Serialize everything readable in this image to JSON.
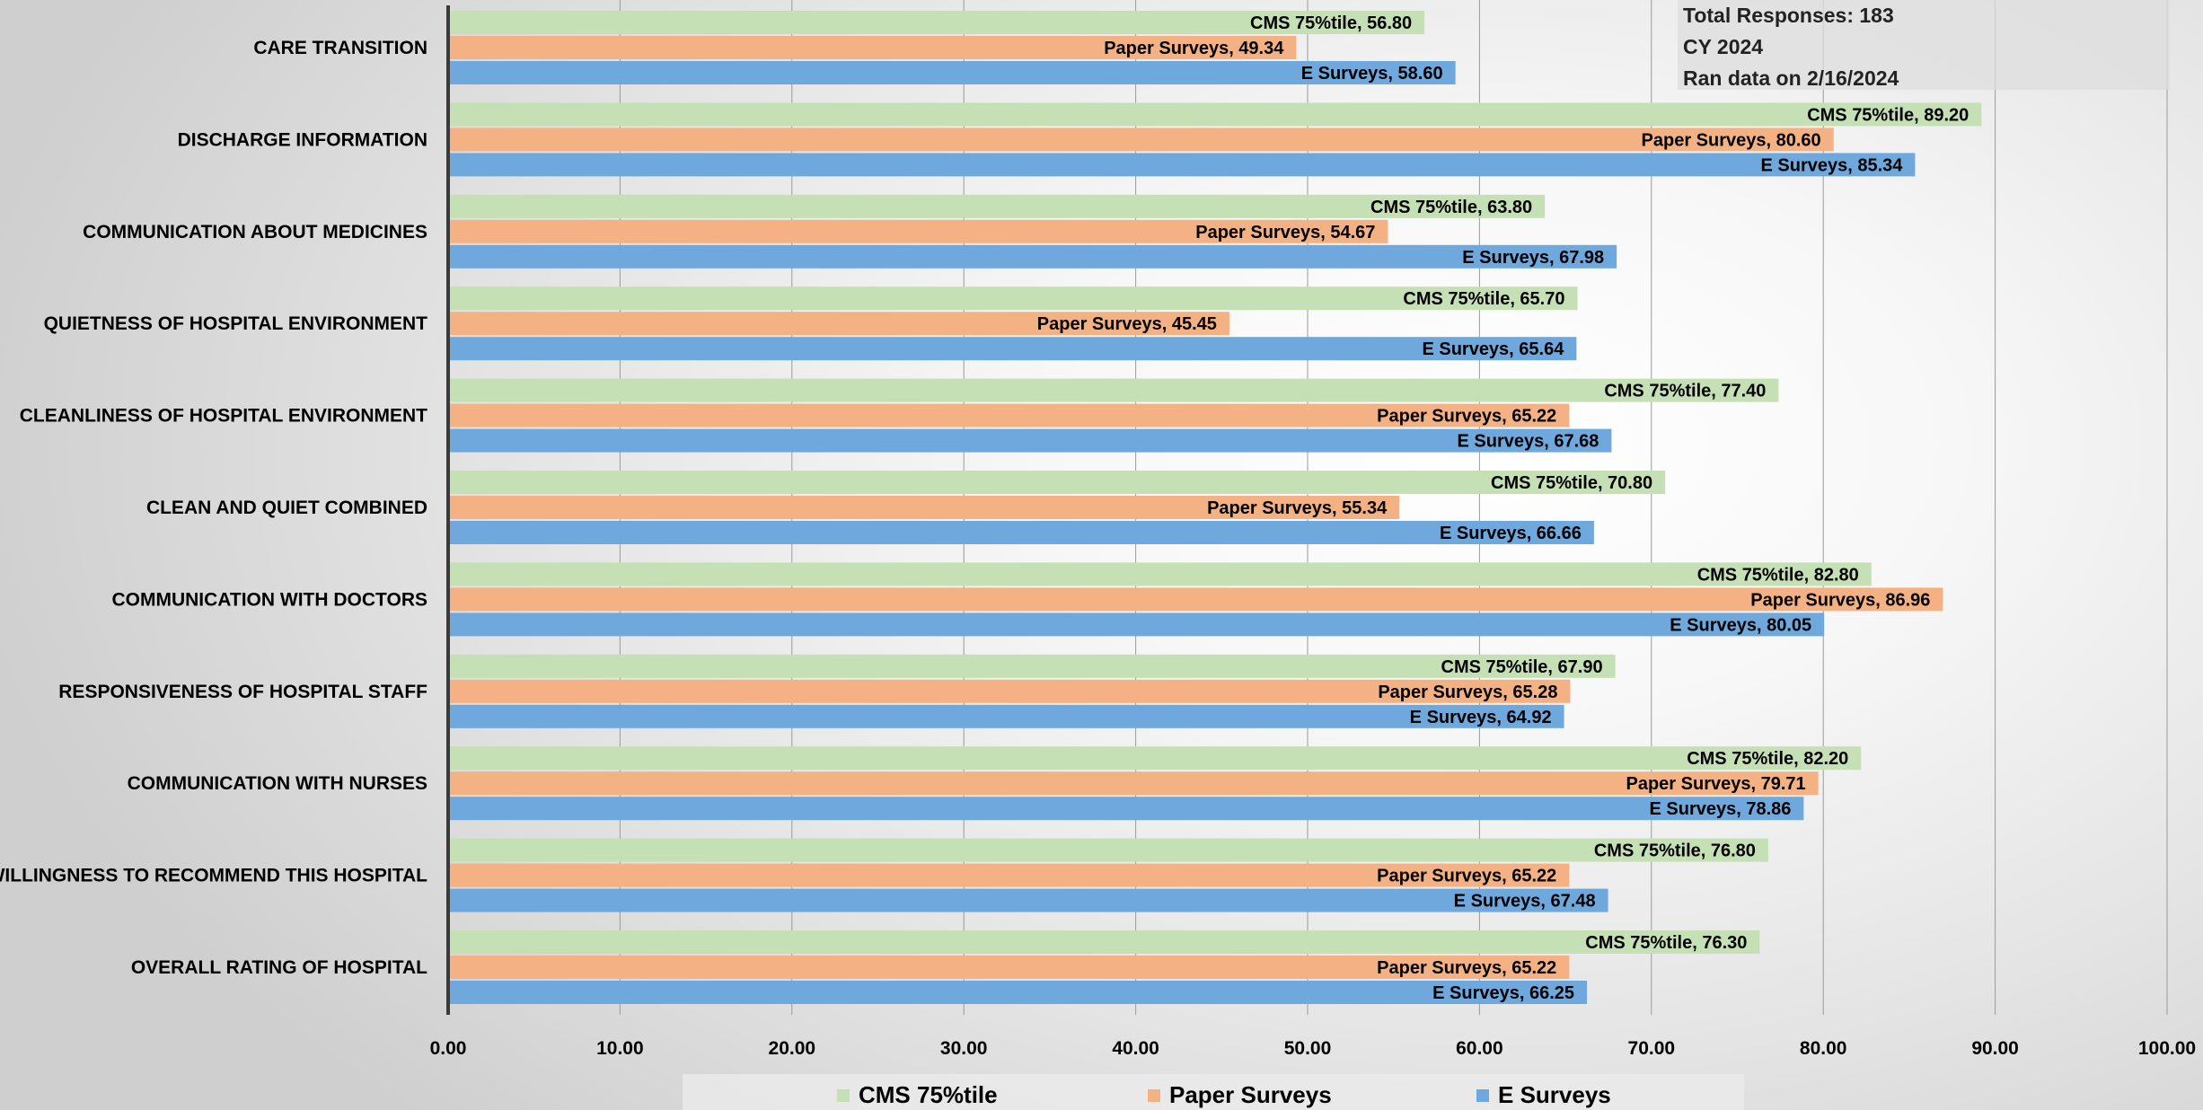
{
  "info": {
    "total_responses": "Total Responses: 183",
    "cy": "CY 2024",
    "ran_date": "Ran data on 2/16/2024"
  },
  "colors": {
    "cms": "#c5e0b4",
    "paper": "#f4b183",
    "e": "#6fa8dc"
  },
  "chart_data": {
    "type": "bar",
    "orientation": "horizontal",
    "categories": [
      "CARE TRANSITION",
      "DISCHARGE INFORMATION",
      "COMMUNICATION ABOUT MEDICINES",
      "QUIETNESS OF HOSPITAL ENVIRONMENT",
      "CLEANLINESS OF HOSPITAL ENVIRONMENT",
      "CLEAN AND QUIET COMBINED",
      "COMMUNICATION WITH DOCTORS",
      "RESPONSIVENESS OF HOSPITAL STAFF",
      "COMMUNICATION WITH NURSES",
      "WILLINGNESS TO RECOMMEND THIS HOSPITAL",
      "OVERALL RATING OF HOSPITAL"
    ],
    "series": [
      {
        "name": "CMS 75%tile",
        "values": [
          56.8,
          89.2,
          63.8,
          65.7,
          77.4,
          70.8,
          82.8,
          67.9,
          82.2,
          76.8,
          76.3
        ]
      },
      {
        "name": "Paper Surveys",
        "values": [
          49.34,
          80.6,
          54.67,
          45.45,
          65.22,
          55.34,
          86.96,
          65.28,
          79.71,
          65.22,
          65.22
        ]
      },
      {
        "name": "E Surveys",
        "values": [
          58.6,
          85.34,
          67.98,
          65.64,
          67.68,
          66.66,
          80.05,
          64.92,
          78.86,
          67.48,
          66.25
        ]
      }
    ],
    "xlim": [
      0,
      100
    ],
    "xticks": [
      "0.00",
      "10.00",
      "20.00",
      "30.00",
      "40.00",
      "50.00",
      "60.00",
      "70.00",
      "80.00",
      "90.00",
      "100.00"
    ],
    "grid": "vertical",
    "legend": "bottom"
  }
}
